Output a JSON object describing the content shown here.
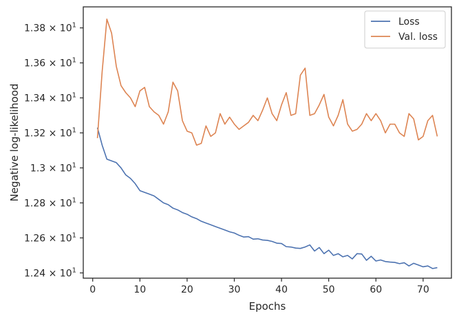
{
  "chart_data": {
    "type": "line",
    "xlabel": "Epochs",
    "ylabel": "Negative log-likelihood",
    "xlim": [
      -2,
      76
    ],
    "ylim": [
      12.37,
      13.92
    ],
    "x_ticks": [
      0,
      10,
      20,
      30,
      40,
      50,
      60,
      70
    ],
    "y_ticks": [
      {
        "value": 12.4,
        "mant": "1.24"
      },
      {
        "value": 12.6,
        "mant": "1.26"
      },
      {
        "value": 12.8,
        "mant": "1.28"
      },
      {
        "value": 13.0,
        "mant": "1.3"
      },
      {
        "value": 13.2,
        "mant": "1.32"
      },
      {
        "value": 13.4,
        "mant": "1.34"
      },
      {
        "value": 13.6,
        "mant": "1.36"
      },
      {
        "value": 13.8,
        "mant": "1.38"
      }
    ],
    "y_tick_suffix": "× 10",
    "y_tick_exponent": "1",
    "grid": false,
    "legend_position": "top-right",
    "series": [
      {
        "name": "Loss",
        "color": "#4c72b0",
        "x": [
          1,
          2,
          3,
          4,
          5,
          6,
          7,
          8,
          9,
          10,
          11,
          12,
          13,
          14,
          15,
          16,
          17,
          18,
          19,
          20,
          21,
          22,
          23,
          24,
          25,
          26,
          27,
          28,
          29,
          30,
          31,
          32,
          33,
          34,
          35,
          36,
          37,
          38,
          39,
          40,
          41,
          42,
          43,
          44,
          45,
          46,
          47,
          48,
          49,
          50,
          51,
          52,
          53,
          54,
          55,
          56,
          57,
          58,
          59,
          60,
          61,
          62,
          63,
          64,
          65,
          66,
          67,
          68,
          69,
          70,
          71,
          72,
          73
        ],
        "values": [
          13.23,
          13.13,
          13.05,
          13.04,
          13.03,
          13.0,
          12.96,
          12.94,
          12.91,
          12.87,
          12.86,
          12.85,
          12.84,
          12.82,
          12.8,
          12.79,
          12.77,
          12.76,
          12.745,
          12.735,
          12.72,
          12.71,
          12.695,
          12.685,
          12.675,
          12.665,
          12.655,
          12.645,
          12.635,
          12.628,
          12.615,
          12.605,
          12.607,
          12.593,
          12.595,
          12.588,
          12.586,
          12.58,
          12.57,
          12.568,
          12.55,
          12.548,
          12.542,
          12.54,
          12.548,
          12.56,
          12.525,
          12.545,
          12.51,
          12.53,
          12.5,
          12.51,
          12.492,
          12.5,
          12.48,
          12.51,
          12.508,
          12.472,
          12.495,
          12.468,
          12.474,
          12.465,
          12.462,
          12.46,
          12.453,
          12.458,
          12.44,
          12.455,
          12.445,
          12.435,
          12.44,
          12.425,
          12.43
        ]
      },
      {
        "name": "Val. loss",
        "color": "#dd8452",
        "x": [
          1,
          2,
          3,
          4,
          5,
          6,
          7,
          8,
          9,
          10,
          11,
          12,
          13,
          14,
          15,
          16,
          17,
          18,
          19,
          20,
          21,
          22,
          23,
          24,
          25,
          26,
          27,
          28,
          29,
          30,
          31,
          32,
          33,
          34,
          35,
          36,
          37,
          38,
          39,
          40,
          41,
          42,
          43,
          44,
          45,
          46,
          47,
          48,
          49,
          50,
          51,
          52,
          53,
          54,
          55,
          56,
          57,
          58,
          59,
          60,
          61,
          62,
          63,
          64,
          65,
          66,
          67,
          68,
          69,
          70,
          71,
          72,
          73
        ],
        "values": [
          13.17,
          13.55,
          13.85,
          13.77,
          13.58,
          13.47,
          13.43,
          13.4,
          13.35,
          13.44,
          13.46,
          13.35,
          13.32,
          13.3,
          13.25,
          13.32,
          13.49,
          13.44,
          13.27,
          13.21,
          13.2,
          13.13,
          13.14,
          13.24,
          13.18,
          13.2,
          13.31,
          13.25,
          13.29,
          13.25,
          13.22,
          13.24,
          13.26,
          13.3,
          13.27,
          13.33,
          13.4,
          13.31,
          13.27,
          13.36,
          13.43,
          13.3,
          13.31,
          13.53,
          13.57,
          13.3,
          13.31,
          13.36,
          13.42,
          13.29,
          13.24,
          13.3,
          13.39,
          13.25,
          13.21,
          13.22,
          13.25,
          13.31,
          13.27,
          13.31,
          13.27,
          13.2,
          13.25,
          13.25,
          13.2,
          13.18,
          13.31,
          13.28,
          13.16,
          13.18,
          13.27,
          13.3,
          13.18
        ]
      }
    ]
  }
}
